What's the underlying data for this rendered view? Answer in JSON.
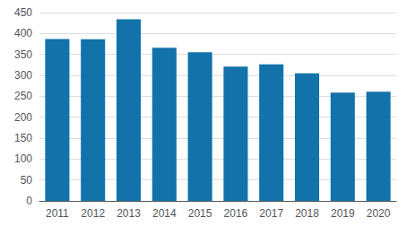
{
  "chart_data": {
    "type": "bar",
    "categories": [
      "2011",
      "2012",
      "2013",
      "2014",
      "2015",
      "2016",
      "2017",
      "2018",
      "2019",
      "2020"
    ],
    "values": [
      387,
      386,
      434,
      366,
      355,
      321,
      326,
      305,
      259,
      261
    ],
    "color": "#1472ab",
    "ylim": [
      0,
      450
    ],
    "yticks": [
      0,
      50,
      100,
      150,
      200,
      250,
      300,
      350,
      400,
      450
    ],
    "grid": true
  }
}
